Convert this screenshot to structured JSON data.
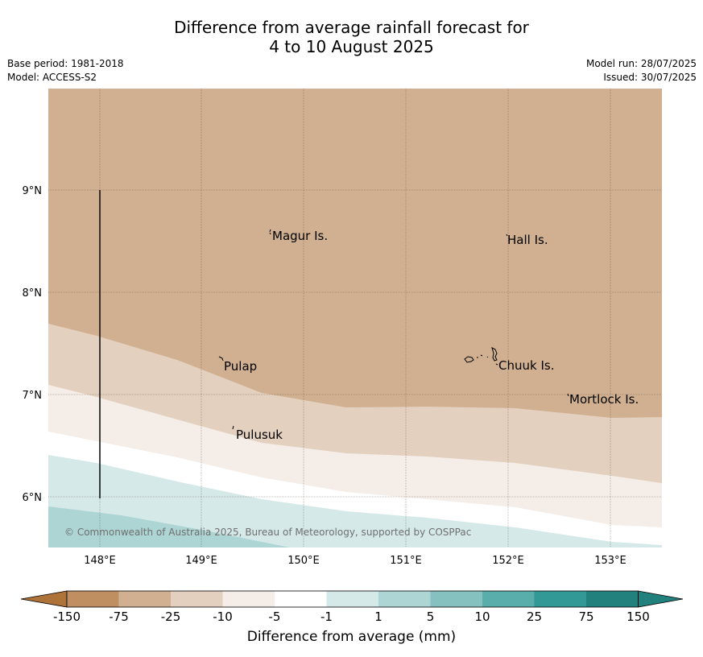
{
  "title": {
    "line1": "Difference from average rainfall forecast for",
    "line2": "4 to 10 August 2025"
  },
  "meta": {
    "base_period": "Base period: 1981-2018",
    "model": "Model: ACCESS-S2",
    "model_run": "Model run: 28/07/2025",
    "issued": "Issued: 30/07/2025"
  },
  "map": {
    "lat_labels": [
      "9°N",
      "8°N",
      "7°N",
      "6°N"
    ],
    "lon_labels": [
      "148°E",
      "149°E",
      "150°E",
      "151°E",
      "152°E",
      "153°E"
    ],
    "places": [
      "Magur Is.",
      "Hall Is.",
      "Pulap",
      "Chuuk Is.",
      "Mortlock Is.",
      "Pulusuk"
    ],
    "copyright": "© Commonwealth of Australia 2025, Bureau of Meteorology, supported by COSPPac"
  },
  "colorbar": {
    "label": "Difference from average (mm)",
    "ticks": [
      "-150",
      "-75",
      "-25",
      "-10",
      "-5",
      "-1",
      "1",
      "5",
      "10",
      "25",
      "75",
      "150"
    ],
    "colors": [
      "#ad7339",
      "#bf8f62",
      "#d0b090",
      "#e3d0bf",
      "#f4ede8",
      "#ffffff",
      "#d4e9e8",
      "#acd5d4",
      "#84c1bf",
      "#59aeab",
      "#329996",
      "#22807d"
    ]
  }
}
